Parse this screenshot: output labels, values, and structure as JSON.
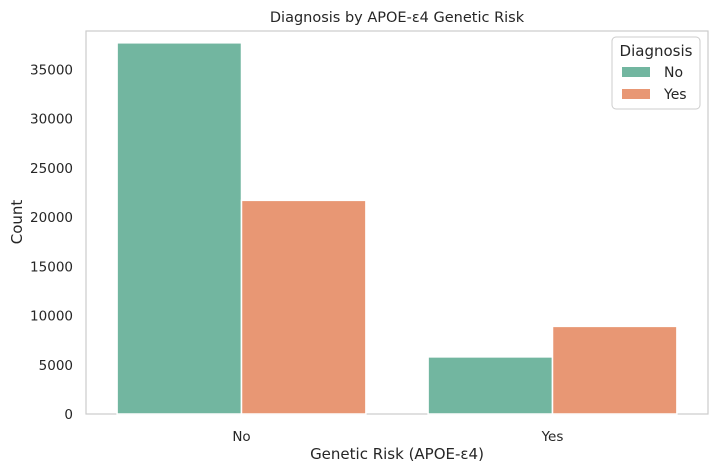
{
  "chart_data": {
    "type": "bar",
    "title": "Diagnosis by APOE-ε4 Genetic Risk",
    "xlabel": "Genetic Risk (APOE-ε4)",
    "ylabel": "Count",
    "categories": [
      "No",
      "Yes"
    ],
    "series": [
      {
        "name": "No",
        "values": [
          37700,
          5800
        ],
        "color": "#72b6a0"
      },
      {
        "name": "Yes",
        "values": [
          21700,
          8900
        ],
        "color": "#e89774"
      }
    ],
    "ylim": [
      0,
      38900
    ],
    "yticks": [
      0,
      5000,
      10000,
      15000,
      20000,
      25000,
      30000,
      35000
    ],
    "legend": {
      "title": "Diagnosis",
      "position": "top-right"
    },
    "grid": false
  }
}
